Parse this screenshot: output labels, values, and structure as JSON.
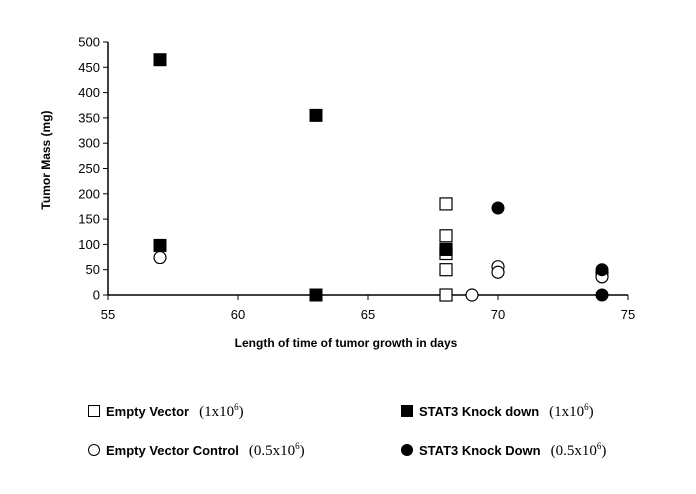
{
  "chart_data": {
    "type": "scatter",
    "title": "",
    "xlabel": "Length of time of tumor growth in days",
    "ylabel": "Tumor Mass (mg)",
    "xlim": [
      55,
      75
    ],
    "ylim": [
      0,
      500
    ],
    "xticks": [
      55,
      60,
      65,
      70,
      75
    ],
    "yticks": [
      0,
      50,
      100,
      150,
      200,
      250,
      300,
      350,
      400,
      450,
      500
    ],
    "grid": false,
    "legend_position": "bottom",
    "series": [
      {
        "name": "Empty Vector",
        "concentration": "(1x10",
        "concentration_exp": "6",
        "concentration_close": ")",
        "marker": "open-square",
        "points": [
          [
            68,
            180
          ],
          [
            68,
            117
          ],
          [
            68,
            90
          ],
          [
            68,
            82
          ],
          [
            68,
            50
          ],
          [
            68,
            0
          ]
        ]
      },
      {
        "name": "STAT3 Knock down",
        "concentration": "(1x10",
        "concentration_exp": "6",
        "concentration_close": ")",
        "marker": "filled-square",
        "points": [
          [
            57,
            465
          ],
          [
            57,
            98
          ],
          [
            63,
            355
          ],
          [
            63,
            0
          ],
          [
            68,
            90
          ]
        ]
      },
      {
        "name": "Empty Vector Control",
        "concentration": "(0.5x10",
        "concentration_exp": "6",
        "concentration_close": ")",
        "marker": "open-circle",
        "points": [
          [
            57,
            74
          ],
          [
            69,
            0
          ],
          [
            70,
            56
          ],
          [
            70,
            45
          ],
          [
            74,
            44
          ],
          [
            74,
            36
          ]
        ]
      },
      {
        "name": "STAT3 Knock Down",
        "concentration": "(0.5x10",
        "concentration_exp": "6",
        "concentration_close": ")",
        "marker": "filled-circle",
        "points": [
          [
            70,
            172
          ],
          [
            74,
            50
          ],
          [
            74,
            0
          ]
        ]
      }
    ]
  }
}
